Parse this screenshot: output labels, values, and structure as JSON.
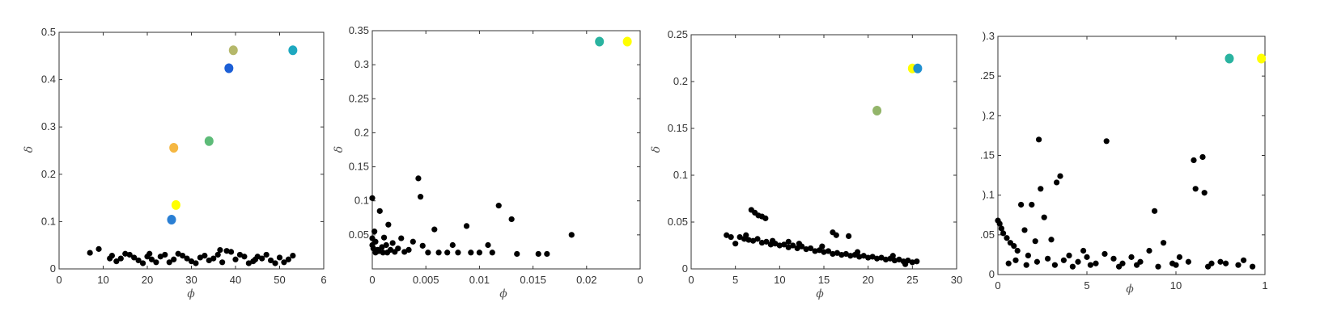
{
  "chart_data": [
    {
      "type": "scatter",
      "xlabel": "ϕ",
      "ylabel": "δ",
      "xlim": [
        0,
        60
      ],
      "ylim": [
        0,
        0.5
      ],
      "x_ticks": [
        "0",
        "10",
        "20",
        "30",
        "40",
        "50",
        "6"
      ],
      "y_ticks": [
        "0",
        "0.1",
        "0.2",
        "0.3",
        "0.4",
        "0.5"
      ],
      "grid": false,
      "highlight_points": [
        {
          "x": 25.5,
          "y": 0.104,
          "color": "#2a7fd4"
        },
        {
          "x": 26.5,
          "y": 0.135,
          "color": "#ffff00"
        },
        {
          "x": 26.0,
          "y": 0.256,
          "color": "#f5b742"
        },
        {
          "x": 34.0,
          "y": 0.27,
          "color": "#5dbb78"
        },
        {
          "x": 38.5,
          "y": 0.424,
          "color": "#1c5fd6"
        },
        {
          "x": 39.5,
          "y": 0.462,
          "color": "#b5b86a"
        },
        {
          "x": 53.0,
          "y": 0.462,
          "color": "#1ea8c0"
        }
      ],
      "background_points": [
        {
          "x": 7,
          "y": 0.034
        },
        {
          "x": 9,
          "y": 0.042
        },
        {
          "x": 12,
          "y": 0.028
        },
        {
          "x": 14,
          "y": 0.022
        },
        {
          "x": 16,
          "y": 0.03
        },
        {
          "x": 18,
          "y": 0.018
        },
        {
          "x": 20,
          "y": 0.026
        },
        {
          "x": 22,
          "y": 0.014
        },
        {
          "x": 24,
          "y": 0.03
        },
        {
          "x": 26,
          "y": 0.02
        },
        {
          "x": 28,
          "y": 0.028
        },
        {
          "x": 30,
          "y": 0.016
        },
        {
          "x": 32,
          "y": 0.024
        },
        {
          "x": 34,
          "y": 0.018
        },
        {
          "x": 36,
          "y": 0.03
        },
        {
          "x": 38,
          "y": 0.038
        },
        {
          "x": 40,
          "y": 0.02
        },
        {
          "x": 42,
          "y": 0.026
        },
        {
          "x": 44,
          "y": 0.016
        },
        {
          "x": 46,
          "y": 0.022
        },
        {
          "x": 48,
          "y": 0.018
        },
        {
          "x": 50,
          "y": 0.024
        },
        {
          "x": 52,
          "y": 0.02
        },
        {
          "x": 53,
          "y": 0.028
        },
        {
          "x": 13,
          "y": 0.016
        },
        {
          "x": 17,
          "y": 0.024
        },
        {
          "x": 21,
          "y": 0.02
        },
        {
          "x": 25,
          "y": 0.014
        },
        {
          "x": 29,
          "y": 0.022
        },
        {
          "x": 33,
          "y": 0.028
        },
        {
          "x": 37,
          "y": 0.014
        },
        {
          "x": 41,
          "y": 0.03
        },
        {
          "x": 45,
          "y": 0.026
        },
        {
          "x": 49,
          "y": 0.012
        },
        {
          "x": 15,
          "y": 0.032
        },
        {
          "x": 19,
          "y": 0.012
        },
        {
          "x": 23,
          "y": 0.026
        },
        {
          "x": 27,
          "y": 0.032
        },
        {
          "x": 31,
          "y": 0.012
        },
        {
          "x": 35,
          "y": 0.022
        },
        {
          "x": 39,
          "y": 0.036
        },
        {
          "x": 43,
          "y": 0.012
        },
        {
          "x": 47,
          "y": 0.03
        },
        {
          "x": 51,
          "y": 0.014
        },
        {
          "x": 11.5,
          "y": 0.022
        },
        {
          "x": 36.5,
          "y": 0.04
        },
        {
          "x": 20.5,
          "y": 0.032
        },
        {
          "x": 44.5,
          "y": 0.02
        }
      ]
    },
    {
      "type": "scatter",
      "xlabel": "ϕ",
      "ylabel": "δ",
      "xlim": [
        0,
        0.025
      ],
      "ylim": [
        0,
        0.35
      ],
      "x_ticks": [
        "0",
        "0.005",
        "0.01",
        "0.015",
        "0.02",
        "0"
      ],
      "y_ticks": [
        "0.05",
        "0.1",
        "0.15",
        "0.2",
        "0.25",
        "0.3",
        "0.35"
      ],
      "grid": false,
      "highlight_points": [
        {
          "x": 0.0212,
          "y": 0.334,
          "color": "#2ab3a0"
        },
        {
          "x": 0.0238,
          "y": 0.334,
          "color": "#ffff00"
        }
      ],
      "background_points": [
        {
          "x": 0.0,
          "y": 0.104
        },
        {
          "x": 0.0,
          "y": 0.045
        },
        {
          "x": 0.0,
          "y": 0.035
        },
        {
          "x": 0.0001,
          "y": 0.03
        },
        {
          "x": 0.0002,
          "y": 0.055
        },
        {
          "x": 0.0003,
          "y": 0.04
        },
        {
          "x": 0.0005,
          "y": 0.028
        },
        {
          "x": 0.0007,
          "y": 0.085
        },
        {
          "x": 0.0009,
          "y": 0.032
        },
        {
          "x": 0.0011,
          "y": 0.046
        },
        {
          "x": 0.0013,
          "y": 0.035
        },
        {
          "x": 0.0015,
          "y": 0.065
        },
        {
          "x": 0.0017,
          "y": 0.028
        },
        {
          "x": 0.0019,
          "y": 0.038
        },
        {
          "x": 0.0021,
          "y": 0.025
        },
        {
          "x": 0.0024,
          "y": 0.03
        },
        {
          "x": 0.0027,
          "y": 0.045
        },
        {
          "x": 0.003,
          "y": 0.025
        },
        {
          "x": 0.0034,
          "y": 0.028
        },
        {
          "x": 0.0038,
          "y": 0.04
        },
        {
          "x": 0.0043,
          "y": 0.133
        },
        {
          "x": 0.0045,
          "y": 0.106
        },
        {
          "x": 0.0047,
          "y": 0.034
        },
        {
          "x": 0.0052,
          "y": 0.024
        },
        {
          "x": 0.0058,
          "y": 0.058
        },
        {
          "x": 0.0062,
          "y": 0.024
        },
        {
          "x": 0.007,
          "y": 0.024
        },
        {
          "x": 0.0075,
          "y": 0.035
        },
        {
          "x": 0.008,
          "y": 0.024
        },
        {
          "x": 0.0088,
          "y": 0.063
        },
        {
          "x": 0.0092,
          "y": 0.024
        },
        {
          "x": 0.01,
          "y": 0.024
        },
        {
          "x": 0.0108,
          "y": 0.035
        },
        {
          "x": 0.0112,
          "y": 0.024
        },
        {
          "x": 0.0118,
          "y": 0.093
        },
        {
          "x": 0.013,
          "y": 0.073
        },
        {
          "x": 0.0135,
          "y": 0.022
        },
        {
          "x": 0.0155,
          "y": 0.022
        },
        {
          "x": 0.0163,
          "y": 0.022
        },
        {
          "x": 0.0186,
          "y": 0.05
        },
        {
          "x": 0.0003,
          "y": 0.024
        },
        {
          "x": 0.0006,
          "y": 0.026
        },
        {
          "x": 0.001,
          "y": 0.024
        },
        {
          "x": 0.0014,
          "y": 0.024
        }
      ]
    },
    {
      "type": "scatter",
      "xlabel": "ϕ",
      "ylabel": "δ",
      "xlim": [
        0,
        30
      ],
      "ylim": [
        0,
        0.25
      ],
      "x_ticks": [
        "0",
        "5",
        "10",
        "15",
        "20",
        "25",
        "30"
      ],
      "y_ticks": [
        "0",
        "0.05",
        "0.1",
        "0.15",
        "0.2",
        "0.25"
      ],
      "grid": false,
      "highlight_points": [
        {
          "x": 21.0,
          "y": 0.169,
          "color": "#93b56a"
        },
        {
          "x": 25.0,
          "y": 0.214,
          "color": "#ffff00"
        },
        {
          "x": 25.6,
          "y": 0.214,
          "color": "#1f8fd0"
        }
      ],
      "background_points": [
        {
          "x": 4.0,
          "y": 0.036
        },
        {
          "x": 4.5,
          "y": 0.034
        },
        {
          "x": 5.0,
          "y": 0.027
        },
        {
          "x": 5.5,
          "y": 0.034
        },
        {
          "x": 6.0,
          "y": 0.032
        },
        {
          "x": 6.5,
          "y": 0.031
        },
        {
          "x": 7.0,
          "y": 0.03
        },
        {
          "x": 7.5,
          "y": 0.032
        },
        {
          "x": 8.0,
          "y": 0.028
        },
        {
          "x": 8.5,
          "y": 0.029
        },
        {
          "x": 9.0,
          "y": 0.026
        },
        {
          "x": 9.5,
          "y": 0.027
        },
        {
          "x": 10.0,
          "y": 0.025
        },
        {
          "x": 10.5,
          "y": 0.026
        },
        {
          "x": 11.0,
          "y": 0.023
        },
        {
          "x": 11.5,
          "y": 0.025
        },
        {
          "x": 12.0,
          "y": 0.022
        },
        {
          "x": 12.5,
          "y": 0.024
        },
        {
          "x": 13.0,
          "y": 0.021
        },
        {
          "x": 13.5,
          "y": 0.022
        },
        {
          "x": 14.0,
          "y": 0.019
        },
        {
          "x": 14.5,
          "y": 0.02
        },
        {
          "x": 15.0,
          "y": 0.018
        },
        {
          "x": 15.5,
          "y": 0.019
        },
        {
          "x": 16.0,
          "y": 0.016
        },
        {
          "x": 16.5,
          "y": 0.017
        },
        {
          "x": 17.0,
          "y": 0.015
        },
        {
          "x": 17.5,
          "y": 0.016
        },
        {
          "x": 18.0,
          "y": 0.014
        },
        {
          "x": 18.5,
          "y": 0.015
        },
        {
          "x": 19.0,
          "y": 0.013
        },
        {
          "x": 19.5,
          "y": 0.014
        },
        {
          "x": 20.0,
          "y": 0.012
        },
        {
          "x": 20.5,
          "y": 0.013
        },
        {
          "x": 21.0,
          "y": 0.011
        },
        {
          "x": 21.5,
          "y": 0.012
        },
        {
          "x": 22.0,
          "y": 0.01
        },
        {
          "x": 22.5,
          "y": 0.011
        },
        {
          "x": 23.0,
          "y": 0.009
        },
        {
          "x": 23.5,
          "y": 0.01
        },
        {
          "x": 24.0,
          "y": 0.008
        },
        {
          "x": 24.5,
          "y": 0.009
        },
        {
          "x": 25.0,
          "y": 0.007
        },
        {
          "x": 25.5,
          "y": 0.008
        },
        {
          "x": 6.8,
          "y": 0.063
        },
        {
          "x": 7.2,
          "y": 0.06
        },
        {
          "x": 7.6,
          "y": 0.057
        },
        {
          "x": 8.0,
          "y": 0.056
        },
        {
          "x": 8.4,
          "y": 0.054
        },
        {
          "x": 16.0,
          "y": 0.039
        },
        {
          "x": 16.4,
          "y": 0.036
        },
        {
          "x": 17.8,
          "y": 0.035
        },
        {
          "x": 9.2,
          "y": 0.03
        },
        {
          "x": 12.2,
          "y": 0.027
        },
        {
          "x": 14.8,
          "y": 0.024
        },
        {
          "x": 18.8,
          "y": 0.018
        },
        {
          "x": 22.8,
          "y": 0.014
        },
        {
          "x": 24.2,
          "y": 0.005
        },
        {
          "x": 11.0,
          "y": 0.029
        },
        {
          "x": 6.2,
          "y": 0.036
        }
      ]
    },
    {
      "type": "scatter",
      "xlabel": "ϕ",
      "ylabel": "",
      "xlim": [
        0,
        15
      ],
      "ylim": [
        0,
        0.3
      ],
      "x_ticks": [
        "0",
        "5",
        "10",
        "1"
      ],
      "y_ticks": [
        ".05",
        "0.1",
        ".15",
        "0.2",
        ".25",
        "0.3"
      ],
      "y_ticks_visible_text": [
        "0",
        ".05",
        ").1",
        ".15",
        ").2",
        ".25",
        ").3"
      ],
      "grid": false,
      "highlight_points": [
        {
          "x": 13.0,
          "y": 0.272,
          "color": "#2ab3a0"
        },
        {
          "x": 14.8,
          "y": 0.272,
          "color": "#ffff00"
        }
      ],
      "background_points": [
        {
          "x": 0.0,
          "y": 0.068
        },
        {
          "x": 0.1,
          "y": 0.064
        },
        {
          "x": 0.2,
          "y": 0.058
        },
        {
          "x": 0.3,
          "y": 0.052
        },
        {
          "x": 0.5,
          "y": 0.046
        },
        {
          "x": 0.7,
          "y": 0.04
        },
        {
          "x": 0.9,
          "y": 0.036
        },
        {
          "x": 1.1,
          "y": 0.03
        },
        {
          "x": 1.3,
          "y": 0.088
        },
        {
          "x": 1.5,
          "y": 0.056
        },
        {
          "x": 1.7,
          "y": 0.024
        },
        {
          "x": 1.9,
          "y": 0.088
        },
        {
          "x": 2.1,
          "y": 0.042
        },
        {
          "x": 2.3,
          "y": 0.17
        },
        {
          "x": 2.4,
          "y": 0.108
        },
        {
          "x": 2.6,
          "y": 0.072
        },
        {
          "x": 2.8,
          "y": 0.02
        },
        {
          "x": 3.0,
          "y": 0.044
        },
        {
          "x": 3.3,
          "y": 0.116
        },
        {
          "x": 3.5,
          "y": 0.124
        },
        {
          "x": 3.7,
          "y": 0.018
        },
        {
          "x": 4.0,
          "y": 0.024
        },
        {
          "x": 4.5,
          "y": 0.016
        },
        {
          "x": 5.0,
          "y": 0.022
        },
        {
          "x": 5.5,
          "y": 0.014
        },
        {
          "x": 6.1,
          "y": 0.168
        },
        {
          "x": 6.5,
          "y": 0.02
        },
        {
          "x": 7.0,
          "y": 0.014
        },
        {
          "x": 7.5,
          "y": 0.022
        },
        {
          "x": 8.0,
          "y": 0.016
        },
        {
          "x": 8.5,
          "y": 0.03
        },
        {
          "x": 8.8,
          "y": 0.08
        },
        {
          "x": 9.3,
          "y": 0.04
        },
        {
          "x": 9.8,
          "y": 0.014
        },
        {
          "x": 10.2,
          "y": 0.022
        },
        {
          "x": 10.7,
          "y": 0.016
        },
        {
          "x": 11.0,
          "y": 0.144
        },
        {
          "x": 11.1,
          "y": 0.108
        },
        {
          "x": 11.5,
          "y": 0.148
        },
        {
          "x": 11.6,
          "y": 0.103
        },
        {
          "x": 12.0,
          "y": 0.014
        },
        {
          "x": 12.5,
          "y": 0.016
        },
        {
          "x": 13.5,
          "y": 0.012
        },
        {
          "x": 14.3,
          "y": 0.01
        },
        {
          "x": 0.6,
          "y": 0.014
        },
        {
          "x": 1.0,
          "y": 0.018
        },
        {
          "x": 1.6,
          "y": 0.012
        },
        {
          "x": 2.2,
          "y": 0.016
        },
        {
          "x": 3.2,
          "y": 0.012
        },
        {
          "x": 4.2,
          "y": 0.01
        },
        {
          "x": 5.2,
          "y": 0.012
        },
        {
          "x": 6.8,
          "y": 0.01
        },
        {
          "x": 7.8,
          "y": 0.012
        },
        {
          "x": 9.0,
          "y": 0.01
        },
        {
          "x": 10.0,
          "y": 0.012
        },
        {
          "x": 11.8,
          "y": 0.01
        },
        {
          "x": 12.8,
          "y": 0.014
        },
        {
          "x": 13.8,
          "y": 0.018
        },
        {
          "x": 4.8,
          "y": 0.03
        },
        {
          "x": 6.0,
          "y": 0.026
        }
      ]
    }
  ]
}
